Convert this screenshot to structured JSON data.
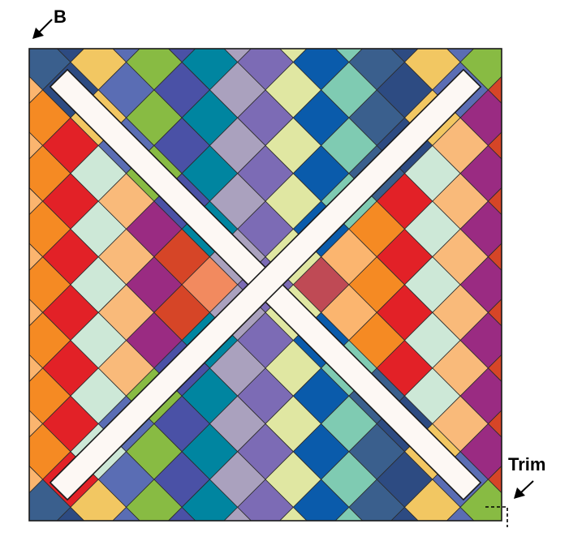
{
  "labels": {
    "b": "B",
    "trim": "Trim"
  },
  "palettes": {
    "cool": [
      "#7c6bb5",
      "#2d4b82",
      "#0085a0",
      "#7fcbb2",
      "#88bb43",
      "#e0e7a2",
      "#f2c762",
      "#aaa1be",
      "#3a5f8d",
      "#4a51a6",
      "#0a5bab",
      "#5a6db4"
    ],
    "warm": [
      "#b2282b",
      "#e22127",
      "#f28a5f",
      "#fbb56f",
      "#9a2b82",
      "#97c83f",
      "#cde8d7",
      "#9dd9ca",
      "#f58a23",
      "#d64527",
      "#bf4a55",
      "#f9ba7a"
    ]
  },
  "colors": {
    "strip_fill": "#fdf8f4",
    "outline": "#1a1a1a"
  }
}
